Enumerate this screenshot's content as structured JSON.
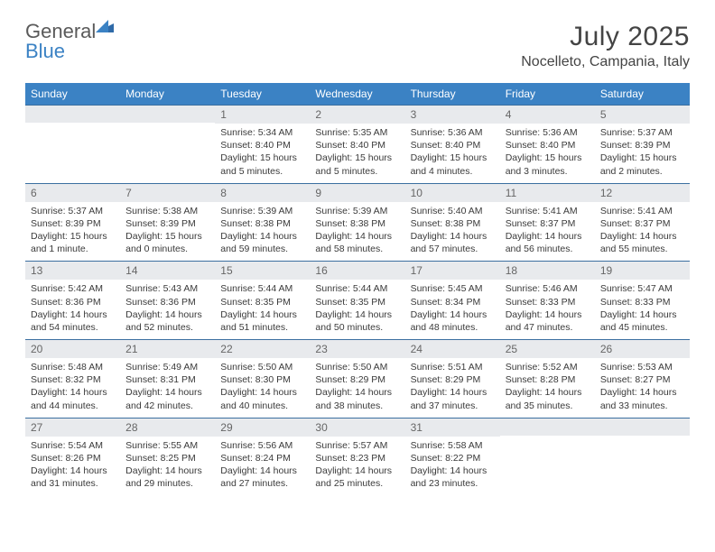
{
  "logo": {
    "text1": "General",
    "text2": "Blue"
  },
  "title": "July 2025",
  "location": "Nocelleto, Campania, Italy",
  "day_headers": [
    "Sunday",
    "Monday",
    "Tuesday",
    "Wednesday",
    "Thursday",
    "Friday",
    "Saturday"
  ],
  "colors": {
    "header_bg": "#3b82c4",
    "header_text": "#ffffff",
    "strip_bg": "#e8eaed",
    "border": "#3b6fa0",
    "body_text": "#3a3a3a"
  },
  "weeks": [
    [
      null,
      null,
      {
        "n": "1",
        "sr": "Sunrise: 5:34 AM",
        "ss": "Sunset: 8:40 PM",
        "d1": "Daylight: 15 hours",
        "d2": "and 5 minutes."
      },
      {
        "n": "2",
        "sr": "Sunrise: 5:35 AM",
        "ss": "Sunset: 8:40 PM",
        "d1": "Daylight: 15 hours",
        "d2": "and 5 minutes."
      },
      {
        "n": "3",
        "sr": "Sunrise: 5:36 AM",
        "ss": "Sunset: 8:40 PM",
        "d1": "Daylight: 15 hours",
        "d2": "and 4 minutes."
      },
      {
        "n": "4",
        "sr": "Sunrise: 5:36 AM",
        "ss": "Sunset: 8:40 PM",
        "d1": "Daylight: 15 hours",
        "d2": "and 3 minutes."
      },
      {
        "n": "5",
        "sr": "Sunrise: 5:37 AM",
        "ss": "Sunset: 8:39 PM",
        "d1": "Daylight: 15 hours",
        "d2": "and 2 minutes."
      }
    ],
    [
      {
        "n": "6",
        "sr": "Sunrise: 5:37 AM",
        "ss": "Sunset: 8:39 PM",
        "d1": "Daylight: 15 hours",
        "d2": "and 1 minute."
      },
      {
        "n": "7",
        "sr": "Sunrise: 5:38 AM",
        "ss": "Sunset: 8:39 PM",
        "d1": "Daylight: 15 hours",
        "d2": "and 0 minutes."
      },
      {
        "n": "8",
        "sr": "Sunrise: 5:39 AM",
        "ss": "Sunset: 8:38 PM",
        "d1": "Daylight: 14 hours",
        "d2": "and 59 minutes."
      },
      {
        "n": "9",
        "sr": "Sunrise: 5:39 AM",
        "ss": "Sunset: 8:38 PM",
        "d1": "Daylight: 14 hours",
        "d2": "and 58 minutes."
      },
      {
        "n": "10",
        "sr": "Sunrise: 5:40 AM",
        "ss": "Sunset: 8:38 PM",
        "d1": "Daylight: 14 hours",
        "d2": "and 57 minutes."
      },
      {
        "n": "11",
        "sr": "Sunrise: 5:41 AM",
        "ss": "Sunset: 8:37 PM",
        "d1": "Daylight: 14 hours",
        "d2": "and 56 minutes."
      },
      {
        "n": "12",
        "sr": "Sunrise: 5:41 AM",
        "ss": "Sunset: 8:37 PM",
        "d1": "Daylight: 14 hours",
        "d2": "and 55 minutes."
      }
    ],
    [
      {
        "n": "13",
        "sr": "Sunrise: 5:42 AM",
        "ss": "Sunset: 8:36 PM",
        "d1": "Daylight: 14 hours",
        "d2": "and 54 minutes."
      },
      {
        "n": "14",
        "sr": "Sunrise: 5:43 AM",
        "ss": "Sunset: 8:36 PM",
        "d1": "Daylight: 14 hours",
        "d2": "and 52 minutes."
      },
      {
        "n": "15",
        "sr": "Sunrise: 5:44 AM",
        "ss": "Sunset: 8:35 PM",
        "d1": "Daylight: 14 hours",
        "d2": "and 51 minutes."
      },
      {
        "n": "16",
        "sr": "Sunrise: 5:44 AM",
        "ss": "Sunset: 8:35 PM",
        "d1": "Daylight: 14 hours",
        "d2": "and 50 minutes."
      },
      {
        "n": "17",
        "sr": "Sunrise: 5:45 AM",
        "ss": "Sunset: 8:34 PM",
        "d1": "Daylight: 14 hours",
        "d2": "and 48 minutes."
      },
      {
        "n": "18",
        "sr": "Sunrise: 5:46 AM",
        "ss": "Sunset: 8:33 PM",
        "d1": "Daylight: 14 hours",
        "d2": "and 47 minutes."
      },
      {
        "n": "19",
        "sr": "Sunrise: 5:47 AM",
        "ss": "Sunset: 8:33 PM",
        "d1": "Daylight: 14 hours",
        "d2": "and 45 minutes."
      }
    ],
    [
      {
        "n": "20",
        "sr": "Sunrise: 5:48 AM",
        "ss": "Sunset: 8:32 PM",
        "d1": "Daylight: 14 hours",
        "d2": "and 44 minutes."
      },
      {
        "n": "21",
        "sr": "Sunrise: 5:49 AM",
        "ss": "Sunset: 8:31 PM",
        "d1": "Daylight: 14 hours",
        "d2": "and 42 minutes."
      },
      {
        "n": "22",
        "sr": "Sunrise: 5:50 AM",
        "ss": "Sunset: 8:30 PM",
        "d1": "Daylight: 14 hours",
        "d2": "and 40 minutes."
      },
      {
        "n": "23",
        "sr": "Sunrise: 5:50 AM",
        "ss": "Sunset: 8:29 PM",
        "d1": "Daylight: 14 hours",
        "d2": "and 38 minutes."
      },
      {
        "n": "24",
        "sr": "Sunrise: 5:51 AM",
        "ss": "Sunset: 8:29 PM",
        "d1": "Daylight: 14 hours",
        "d2": "and 37 minutes."
      },
      {
        "n": "25",
        "sr": "Sunrise: 5:52 AM",
        "ss": "Sunset: 8:28 PM",
        "d1": "Daylight: 14 hours",
        "d2": "and 35 minutes."
      },
      {
        "n": "26",
        "sr": "Sunrise: 5:53 AM",
        "ss": "Sunset: 8:27 PM",
        "d1": "Daylight: 14 hours",
        "d2": "and 33 minutes."
      }
    ],
    [
      {
        "n": "27",
        "sr": "Sunrise: 5:54 AM",
        "ss": "Sunset: 8:26 PM",
        "d1": "Daylight: 14 hours",
        "d2": "and 31 minutes."
      },
      {
        "n": "28",
        "sr": "Sunrise: 5:55 AM",
        "ss": "Sunset: 8:25 PM",
        "d1": "Daylight: 14 hours",
        "d2": "and 29 minutes."
      },
      {
        "n": "29",
        "sr": "Sunrise: 5:56 AM",
        "ss": "Sunset: 8:24 PM",
        "d1": "Daylight: 14 hours",
        "d2": "and 27 minutes."
      },
      {
        "n": "30",
        "sr": "Sunrise: 5:57 AM",
        "ss": "Sunset: 8:23 PM",
        "d1": "Daylight: 14 hours",
        "d2": "and 25 minutes."
      },
      {
        "n": "31",
        "sr": "Sunrise: 5:58 AM",
        "ss": "Sunset: 8:22 PM",
        "d1": "Daylight: 14 hours",
        "d2": "and 23 minutes."
      },
      null,
      null
    ]
  ]
}
